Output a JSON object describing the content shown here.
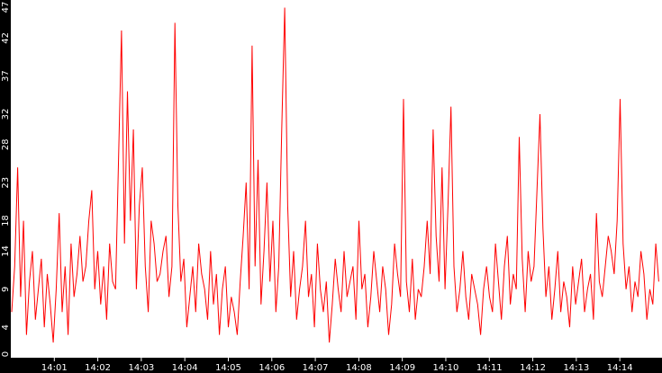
{
  "chart_data": {
    "type": "line",
    "title": "",
    "xlabel": "",
    "ylabel": "",
    "grid": false,
    "legend": "none",
    "colors": {
      "background": "#000000",
      "plot": "#ffffff",
      "line": "#ff0000",
      "text": "#ffffff"
    },
    "ylim": [
      0,
      47
    ],
    "yticks": [
      0,
      4,
      9,
      14,
      18,
      23,
      28,
      32,
      37,
      42,
      47
    ],
    "xlim_minutes": [
      14.0,
      14.97
    ],
    "xticks": [
      {
        "label": "14:01",
        "minute": 1
      },
      {
        "label": "14:02",
        "minute": 2
      },
      {
        "label": "14:03",
        "minute": 3
      },
      {
        "label": "14:04",
        "minute": 4
      },
      {
        "label": "14:05",
        "minute": 5
      },
      {
        "label": "14:06",
        "minute": 6
      },
      {
        "label": "14:07",
        "minute": 7
      },
      {
        "label": "14:08",
        "minute": 8
      },
      {
        "label": "14:09",
        "minute": 9
      },
      {
        "label": "14:10",
        "minute": 10
      },
      {
        "label": "14:11",
        "minute": 11
      },
      {
        "label": "14:12",
        "minute": 12
      },
      {
        "label": "14:13",
        "minute": 13
      },
      {
        "label": "14:14",
        "minute": 14
      }
    ],
    "series": [
      {
        "x_minute_start": 0.02,
        "x_minute_step": 0.05,
        "values": [
          6,
          12,
          25,
          8,
          18,
          3,
          10,
          14,
          5,
          9,
          13,
          4,
          11,
          7,
          2,
          9,
          19,
          6,
          12,
          3,
          15,
          8,
          11,
          16,
          10,
          12,
          18,
          22,
          9,
          14,
          7,
          12,
          5,
          15,
          10,
          9,
          26,
          43,
          15,
          35,
          18,
          30,
          9,
          20,
          25,
          12,
          6,
          18,
          15,
          10,
          11,
          14,
          16,
          8,
          12,
          44,
          20,
          10,
          13,
          4,
          8,
          12,
          6,
          15,
          11,
          9,
          5,
          14,
          7,
          11,
          3,
          9,
          12,
          4,
          8,
          6,
          3,
          10,
          16,
          23,
          9,
          41,
          12,
          26,
          7,
          14,
          23,
          10,
          18,
          6,
          12,
          30,
          46,
          20,
          8,
          14,
          5,
          9,
          12,
          18,
          8,
          11,
          4,
          15,
          9,
          6,
          10,
          2,
          7,
          13,
          9,
          6,
          14,
          8,
          10,
          12,
          5,
          18,
          9,
          11,
          4,
          8,
          14,
          10,
          6,
          12,
          9,
          3,
          7,
          15,
          11,
          8,
          34,
          10,
          6,
          13,
          5,
          9,
          8,
          12,
          18,
          11,
          30,
          16,
          10,
          25,
          9,
          20,
          33,
          12,
          6,
          9,
          14,
          8,
          5,
          11,
          9,
          7,
          3,
          9,
          12,
          8,
          6,
          15,
          10,
          5,
          12,
          16,
          7,
          11,
          9,
          29,
          13,
          6,
          14,
          10,
          12,
          22,
          32,
          17,
          8,
          12,
          5,
          9,
          14,
          6,
          10,
          8,
          4,
          12,
          7,
          10,
          13,
          6,
          9,
          11,
          5,
          19,
          10,
          8,
          12,
          16,
          14,
          11,
          18,
          34,
          15,
          9,
          12,
          6,
          10,
          8,
          14,
          11,
          5,
          9,
          7,
          15,
          10
        ]
      }
    ]
  }
}
